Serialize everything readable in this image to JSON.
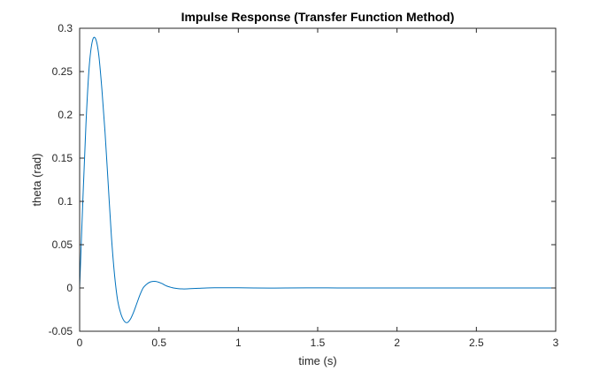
{
  "chart_data": {
    "type": "line",
    "title": "Impulse Response (Transfer Function Method)",
    "xlabel": "time (s)",
    "ylabel": "theta (rad)",
    "xlim": [
      0,
      3
    ],
    "ylim": [
      -0.05,
      0.3
    ],
    "grid": false,
    "x_ticks": [
      0,
      0.5,
      1,
      1.5,
      2,
      2.5,
      3
    ],
    "x_tick_labels": [
      "0",
      "0.5",
      "1",
      "1.5",
      "2",
      "2.5",
      "3"
    ],
    "y_ticks": [
      -0.05,
      0,
      0.05,
      0.1,
      0.15,
      0.2,
      0.25,
      0.3
    ],
    "y_tick_labels": [
      "-0.05",
      "0",
      "0.05",
      "0.1",
      "0.15",
      "0.2",
      "0.25",
      "0.3"
    ],
    "series": [
      {
        "name": "theta",
        "color": "#0072BD",
        "x": [
          0,
          0.02,
          0.04,
          0.06,
          0.08,
          0.1,
          0.12,
          0.14,
          0.16,
          0.18,
          0.2,
          0.22,
          0.24,
          0.26,
          0.28,
          0.3,
          0.32,
          0.34,
          0.36,
          0.38,
          0.4,
          0.42,
          0.44,
          0.46,
          0.48,
          0.5,
          0.52,
          0.54,
          0.56,
          0.58,
          0.6,
          0.62,
          0.64,
          0.66,
          0.7,
          0.75,
          0.8,
          0.85,
          0.9,
          1.0,
          1.1,
          1.2,
          1.3,
          1.5,
          1.7,
          2.0,
          2.5,
          3.0
        ],
        "y": [
          0,
          0.1,
          0.19,
          0.255,
          0.285,
          0.288,
          0.27,
          0.23,
          0.18,
          0.12,
          0.06,
          0.015,
          -0.015,
          -0.03,
          -0.038,
          -0.04,
          -0.036,
          -0.028,
          -0.018,
          -0.008,
          0.0,
          0.004,
          0.0065,
          0.0075,
          0.0075,
          0.0065,
          0.005,
          0.003,
          0.0015,
          0.0005,
          -0.0003,
          -0.0008,
          -0.001,
          -0.0011,
          -0.0008,
          -0.0004,
          0.0,
          0.0002,
          0.0003,
          0.0002,
          0.0,
          -0.0001,
          0.0,
          0.0001,
          0.0,
          0.0,
          0.0,
          0.0
        ]
      }
    ]
  }
}
